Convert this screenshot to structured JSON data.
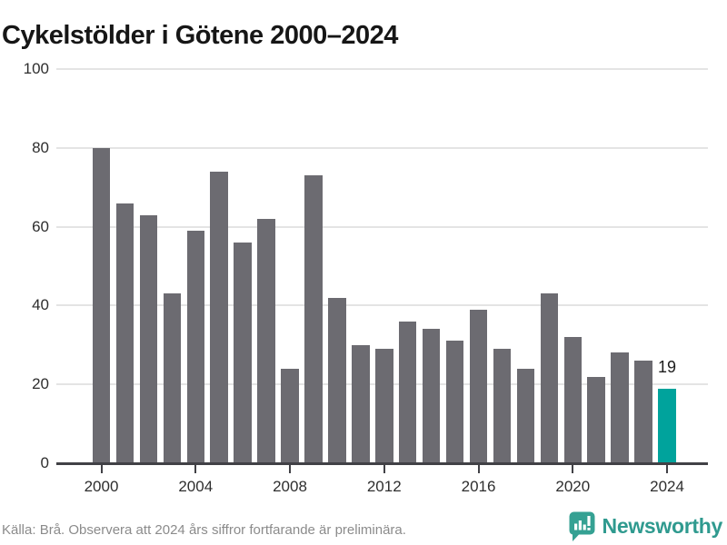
{
  "title": "Cykelstölder i Götene 2000–2024",
  "chart_data": {
    "type": "bar",
    "title": "Cykelstölder i Götene 2000–2024",
    "x": [
      2000,
      2001,
      2002,
      2003,
      2004,
      2005,
      2006,
      2007,
      2008,
      2009,
      2010,
      2011,
      2012,
      2013,
      2014,
      2015,
      2016,
      2017,
      2018,
      2019,
      2020,
      2021,
      2022,
      2023,
      2024
    ],
    "values": [
      80,
      66,
      63,
      43,
      59,
      74,
      56,
      62,
      24,
      73,
      42,
      30,
      29,
      36,
      34,
      31,
      39,
      29,
      24,
      43,
      32,
      22,
      28,
      26,
      19
    ],
    "highlight_x": 2024,
    "highlight_value_label": "19",
    "ylim": [
      0,
      100
    ],
    "yticks": [
      0,
      20,
      40,
      60,
      80,
      100
    ],
    "xticks": [
      2000,
      2004,
      2008,
      2012,
      2016,
      2020,
      2024
    ],
    "grid": true,
    "bar_color": "#6c6b71",
    "highlight_color": "#00a39c",
    "gridline_color": "#e4e4e4",
    "axis_color": "#414146"
  },
  "footer": {
    "source_note": "Källa: Brå. Observera att 2024 års siffror fortfarande är preliminära.",
    "brand": "Newsworthy",
    "brand_color": "#2f9a8f"
  }
}
